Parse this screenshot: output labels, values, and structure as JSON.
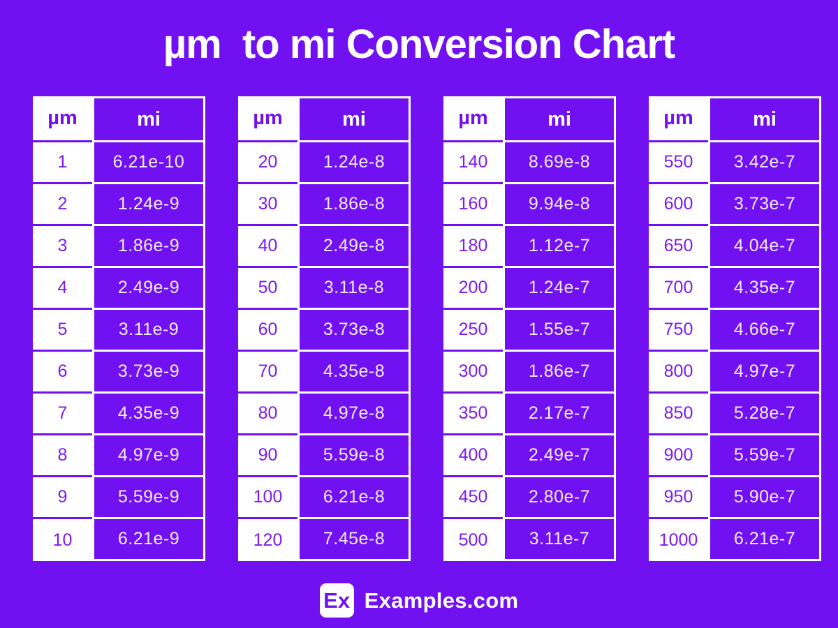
{
  "title": "µm  to mi Conversion Chart",
  "colors": {
    "background": "#7110F0",
    "cell_purple": "#7110F0",
    "purple_text": "#7D1AF5",
    "white": "#FFFFFF"
  },
  "tables": [
    {
      "headers": {
        "um": "µm",
        "mi": "mi"
      },
      "rows": [
        {
          "um": "1",
          "mi": "6.21e-10"
        },
        {
          "um": "2",
          "mi": "1.24e-9"
        },
        {
          "um": "3",
          "mi": "1.86e-9"
        },
        {
          "um": "4",
          "mi": "2.49e-9"
        },
        {
          "um": "5",
          "mi": "3.11e-9"
        },
        {
          "um": "6",
          "mi": "3.73e-9"
        },
        {
          "um": "7",
          "mi": "4.35e-9"
        },
        {
          "um": "8",
          "mi": "4.97e-9"
        },
        {
          "um": "9",
          "mi": "5.59e-9"
        },
        {
          "um": "10",
          "mi": "6.21e-9"
        }
      ]
    },
    {
      "headers": {
        "um": "µm",
        "mi": "mi"
      },
      "rows": [
        {
          "um": "20",
          "mi": "1.24e-8"
        },
        {
          "um": "30",
          "mi": "1.86e-8"
        },
        {
          "um": "40",
          "mi": "2.49e-8"
        },
        {
          "um": "50",
          "mi": "3.11e-8"
        },
        {
          "um": "60",
          "mi": "3.73e-8"
        },
        {
          "um": "70",
          "mi": "4.35e-8"
        },
        {
          "um": "80",
          "mi": "4.97e-8"
        },
        {
          "um": "90",
          "mi": "5.59e-8"
        },
        {
          "um": "100",
          "mi": "6.21e-8"
        },
        {
          "um": "120",
          "mi": "7.45e-8"
        }
      ]
    },
    {
      "headers": {
        "um": "µm",
        "mi": "mi"
      },
      "rows": [
        {
          "um": "140",
          "mi": "8.69e-8"
        },
        {
          "um": "160",
          "mi": "9.94e-8"
        },
        {
          "um": "180",
          "mi": "1.12e-7"
        },
        {
          "um": "200",
          "mi": "1.24e-7"
        },
        {
          "um": "250",
          "mi": "1.55e-7"
        },
        {
          "um": "300",
          "mi": "1.86e-7"
        },
        {
          "um": "350",
          "mi": "2.17e-7"
        },
        {
          "um": "400",
          "mi": "2.49e-7"
        },
        {
          "um": "450",
          "mi": "2.80e-7"
        },
        {
          "um": "500",
          "mi": "3.11e-7"
        }
      ]
    },
    {
      "headers": {
        "um": "µm",
        "mi": "mi"
      },
      "rows": [
        {
          "um": "550",
          "mi": "3.42e-7"
        },
        {
          "um": "600",
          "mi": "3.73e-7"
        },
        {
          "um": "650",
          "mi": "4.04e-7"
        },
        {
          "um": "700",
          "mi": "4.35e-7"
        },
        {
          "um": "750",
          "mi": "4.66e-7"
        },
        {
          "um": "800",
          "mi": "4.97e-7"
        },
        {
          "um": "850",
          "mi": "5.28e-7"
        },
        {
          "um": "900",
          "mi": "5.59e-7"
        },
        {
          "um": "950",
          "mi": "5.90e-7"
        },
        {
          "um": "1000",
          "mi": "6.21e-7"
        }
      ]
    }
  ],
  "footer": {
    "logo_text": "Ex",
    "brand": "Examples.com"
  },
  "chart_data": {
    "type": "table",
    "title": "µm to mi Conversion Chart",
    "columns": [
      "µm",
      "mi"
    ],
    "tables": [
      {
        "rows": [
          [
            "1",
            "6.21e-10"
          ],
          [
            "2",
            "1.24e-9"
          ],
          [
            "3",
            "1.86e-9"
          ],
          [
            "4",
            "2.49e-9"
          ],
          [
            "5",
            "3.11e-9"
          ],
          [
            "6",
            "3.73e-9"
          ],
          [
            "7",
            "4.35e-9"
          ],
          [
            "8",
            "4.97e-9"
          ],
          [
            "9",
            "5.59e-9"
          ],
          [
            "10",
            "6.21e-9"
          ]
        ]
      },
      {
        "rows": [
          [
            "20",
            "1.24e-8"
          ],
          [
            "30",
            "1.86e-8"
          ],
          [
            "40",
            "2.49e-8"
          ],
          [
            "50",
            "3.11e-8"
          ],
          [
            "60",
            "3.73e-8"
          ],
          [
            "70",
            "4.35e-8"
          ],
          [
            "80",
            "4.97e-8"
          ],
          [
            "90",
            "5.59e-8"
          ],
          [
            "100",
            "6.21e-8"
          ],
          [
            "120",
            "7.45e-8"
          ]
        ]
      },
      {
        "rows": [
          [
            "140",
            "8.69e-8"
          ],
          [
            "160",
            "9.94e-8"
          ],
          [
            "180",
            "1.12e-7"
          ],
          [
            "200",
            "1.24e-7"
          ],
          [
            "250",
            "1.55e-7"
          ],
          [
            "300",
            "1.86e-7"
          ],
          [
            "350",
            "2.17e-7"
          ],
          [
            "400",
            "2.49e-7"
          ],
          [
            "450",
            "2.80e-7"
          ],
          [
            "500",
            "3.11e-7"
          ]
        ]
      },
      {
        "rows": [
          [
            "550",
            "3.42e-7"
          ],
          [
            "600",
            "3.73e-7"
          ],
          [
            "650",
            "4.04e-7"
          ],
          [
            "700",
            "4.35e-7"
          ],
          [
            "750",
            "4.66e-7"
          ],
          [
            "800",
            "4.97e-7"
          ],
          [
            "850",
            "5.28e-7"
          ],
          [
            "900",
            "5.59e-7"
          ],
          [
            "950",
            "5.90e-7"
          ],
          [
            "1000",
            "6.21e-7"
          ]
        ]
      }
    ]
  }
}
